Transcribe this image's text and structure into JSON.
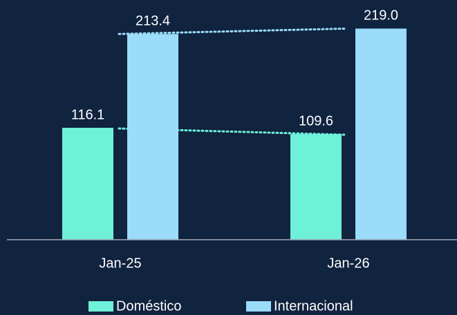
{
  "chart_data": {
    "type": "bar",
    "categories": [
      "Jan-25",
      "Jan-26"
    ],
    "series": [
      {
        "name": "Doméstico",
        "color": "#6ff0d9",
        "values": [
          116.1,
          109.6
        ],
        "value_labels": [
          "116.1",
          "109.6"
        ]
      },
      {
        "name": "Internacional",
        "color": "#9adcf9",
        "values": [
          213.4,
          219.0
        ],
        "value_labels": [
          "213.4",
          "219.0"
        ]
      }
    ],
    "ylim": [
      0,
      220
    ],
    "legend": "bottom"
  }
}
